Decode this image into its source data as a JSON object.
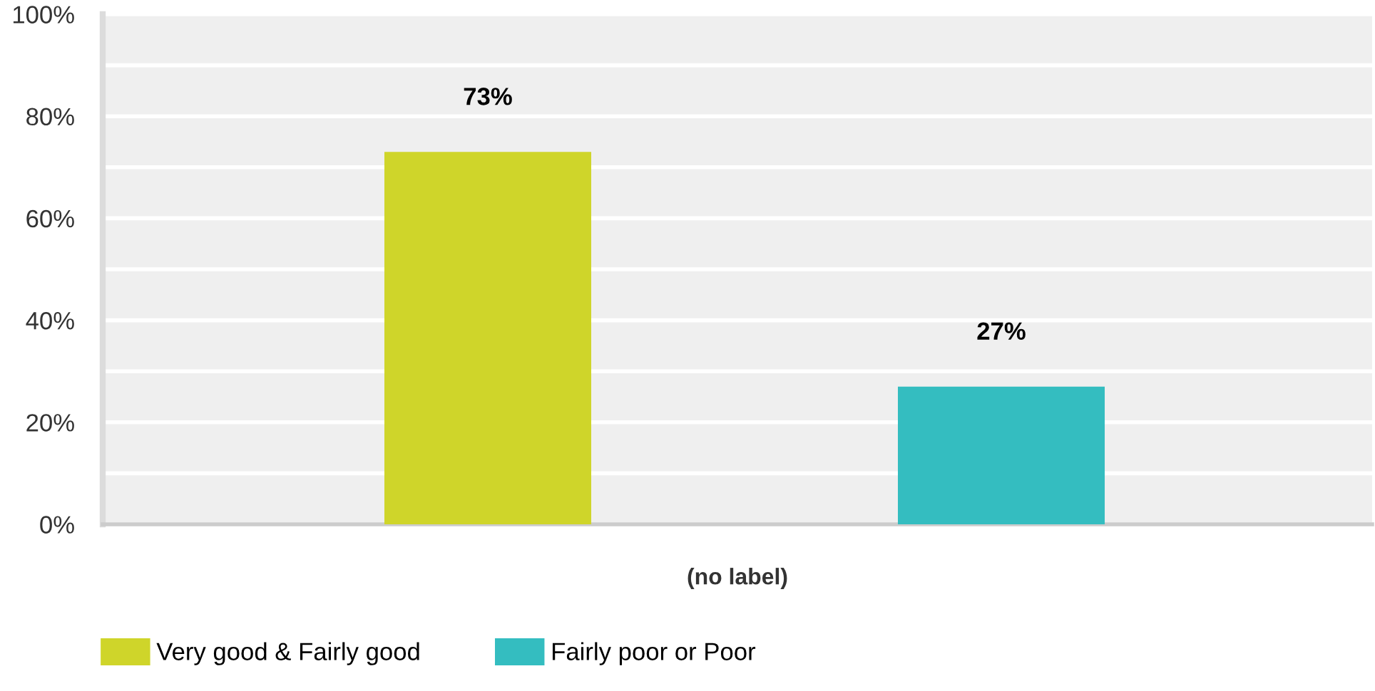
{
  "chart_data": {
    "type": "bar",
    "categories": [
      "(no label)"
    ],
    "series": [
      {
        "name": "Very good & Fairly good",
        "color": "#cfd52a",
        "values": [
          73
        ],
        "value_labels": [
          "73%"
        ]
      },
      {
        "name": "Fairly poor or Poor",
        "color": "#34bdc0",
        "values": [
          27
        ],
        "value_labels": [
          "27%"
        ]
      }
    ],
    "ylim": [
      0,
      100
    ],
    "yticks": [
      {
        "value": 0,
        "label": "0%"
      },
      {
        "value": 10,
        "label": null
      },
      {
        "value": 20,
        "label": "20%"
      },
      {
        "value": 30,
        "label": null
      },
      {
        "value": 40,
        "label": "40%"
      },
      {
        "value": 50,
        "label": null
      },
      {
        "value": 60,
        "label": "60%"
      },
      {
        "value": 70,
        "label": null
      },
      {
        "value": 80,
        "label": "80%"
      },
      {
        "value": 90,
        "label": null
      },
      {
        "value": 100,
        "label": "100%"
      }
    ],
    "grid": "y",
    "legend": "bottom"
  }
}
